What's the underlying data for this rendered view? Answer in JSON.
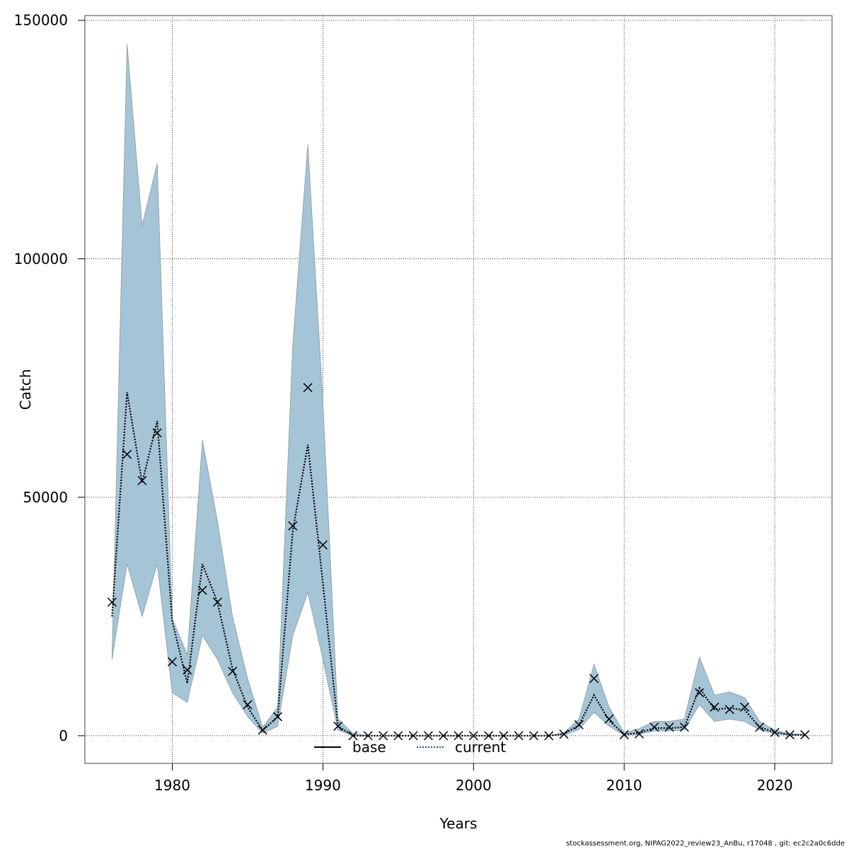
{
  "colors": {
    "band": "#a5c4d6",
    "band_edge": "#8a9aa4",
    "current_line": "#1f4e79",
    "marker": "#000000",
    "grid": "#000000"
  },
  "chart_data": {
    "type": "line",
    "xlabel": "Years",
    "ylabel": "Catch",
    "xlim": [
      1974.2,
      2023.8
    ],
    "ylim": [
      -5800,
      151000
    ],
    "x_ticks": [
      1980,
      1990,
      2000,
      2010,
      2020
    ],
    "y_ticks": [
      0,
      50000,
      100000,
      150000
    ],
    "x_tick_labels": [
      "1980",
      "1990",
      "2000",
      "2010",
      "2020"
    ],
    "y_tick_labels": [
      "0",
      "50000",
      "100000",
      "150000"
    ],
    "grid": true,
    "legend_position": "bottom-center",
    "legend": [
      {
        "name": "base",
        "style": "solid"
      },
      {
        "name": "current",
        "style": "dotted"
      }
    ],
    "years": [
      1976,
      1977,
      1978,
      1979,
      1980,
      1981,
      1982,
      1983,
      1984,
      1985,
      1986,
      1987,
      1988,
      1989,
      1990,
      1991,
      1992,
      1993,
      1994,
      1995,
      1996,
      1997,
      1998,
      1999,
      2000,
      2001,
      2002,
      2003,
      2004,
      2005,
      2006,
      2007,
      2008,
      2009,
      2010,
      2011,
      2012,
      2013,
      2014,
      2015,
      2016,
      2017,
      2018,
      2019,
      2020,
      2021,
      2022
    ],
    "series": [
      {
        "name": "current",
        "type": "line-dotted",
        "values": [
          25000,
          72000,
          53000,
          66000,
          24000,
          11000,
          36000,
          28000,
          14000,
          6000,
          1100,
          4000,
          43000,
          61000,
          32000,
          2000,
          0,
          0,
          0,
          0,
          0,
          0,
          0,
          0,
          0,
          0,
          0,
          0,
          0,
          0,
          400,
          2200,
          8500,
          3200,
          300,
          600,
          1600,
          1600,
          1800,
          10000,
          5500,
          5800,
          5400,
          1800,
          700,
          200,
          200
        ]
      },
      {
        "name": "observed",
        "type": "marker-x",
        "values": [
          28000,
          59000,
          53500,
          63500,
          15500,
          13800,
          30500,
          28000,
          13500,
          6500,
          1200,
          4000,
          44000,
          73000,
          40000,
          2000,
          0,
          0,
          0,
          0,
          0,
          0,
          0,
          0,
          0,
          0,
          0,
          0,
          0,
          0,
          300,
          2300,
          12000,
          3500,
          200,
          400,
          1800,
          1800,
          1800,
          9000,
          6000,
          5500,
          6000,
          1800,
          700,
          200,
          200
        ]
      },
      {
        "name": "interval",
        "type": "band",
        "lower": [
          16000,
          36000,
          25000,
          36000,
          9000,
          7000,
          21000,
          16000,
          9000,
          4000,
          500,
          2000,
          21000,
          30000,
          16000,
          1200,
          0,
          0,
          0,
          0,
          0,
          0,
          0,
          0,
          0,
          0,
          0,
          0,
          0,
          0,
          100,
          1300,
          4900,
          2000,
          100,
          300,
          1000,
          1000,
          1200,
          6500,
          3000,
          3500,
          3000,
          1200,
          400,
          100,
          100
        ],
        "upper": [
          16500,
          145000,
          107000,
          120000,
          24500,
          17000,
          62000,
          45000,
          25000,
          12000,
          1800,
          6000,
          82000,
          124000,
          70000,
          3500,
          500,
          0,
          0,
          0,
          0,
          0,
          0,
          0,
          0,
          0,
          0,
          0,
          0,
          0,
          600,
          3500,
          15000,
          6000,
          600,
          1500,
          3000,
          3000,
          3500,
          16500,
          8500,
          9200,
          8000,
          3000,
          1200,
          400,
          300
        ]
      }
    ]
  },
  "footer": {
    "text": "stockassessment.org, NIPAG2022_review23_AnBu, r17048 , git: ec2c2a0c6dde"
  }
}
